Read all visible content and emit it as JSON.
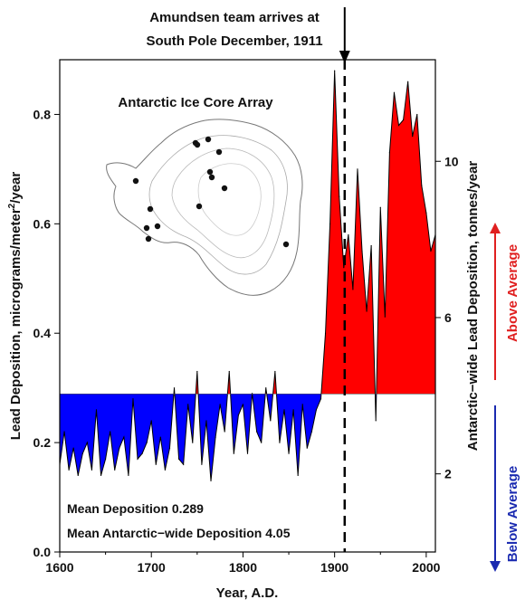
{
  "chart_data": {
    "type": "area",
    "annotation": {
      "line1": "Amundsen team arrives at",
      "line2": "South Pole December, 1911",
      "x": 1911
    },
    "inset_title": "Antarctic Ice Core Array",
    "xlabel": "Year, A.D.",
    "ylabel_left": "Lead Deposition, micrograms/meter",
    "ylabel_left_sup": "2",
    "ylabel_left_tail": "/year",
    "ylabel_right": "Antarctic−wide Lead Deposition, tonnes/year",
    "above_label": "Above Average",
    "below_label": "Below Average",
    "mean_text": "Mean Deposition 0.289",
    "mean_text2": "Mean Antarctic−wide Deposition 4.05",
    "baseline": 0.289,
    "xlim": [
      1600,
      2010
    ],
    "ylim_left": [
      0.0,
      0.9
    ],
    "ylim_right": [
      0,
      12.6
    ],
    "x_ticks": [
      "1600",
      "1700",
      "1800",
      "1900",
      "2000"
    ],
    "y_ticks_left": [
      "0.0",
      "0.2",
      "0.4",
      "0.6",
      "0.8"
    ],
    "y_ticks_right": [
      "2",
      "6",
      "10"
    ],
    "colors": {
      "above": "#ff0000",
      "below": "#0000ff",
      "line": "#000000",
      "arrow_above": "#e02020",
      "arrow_below": "#1a2ab0"
    },
    "series": [
      {
        "x": [
          1600,
          1605,
          1610,
          1615,
          1620,
          1625,
          1630,
          1635,
          1640,
          1645,
          1650,
          1655,
          1660,
          1665,
          1670,
          1675,
          1680,
          1685,
          1690,
          1695,
          1700,
          1705,
          1710,
          1715,
          1720,
          1725,
          1730,
          1735,
          1740,
          1745,
          1750,
          1755,
          1760,
          1765,
          1770,
          1775,
          1780,
          1785,
          1790,
          1795,
          1800,
          1805,
          1810,
          1815,
          1820,
          1825,
          1830,
          1835,
          1840,
          1845,
          1850,
          1855,
          1860,
          1865,
          1870,
          1875,
          1880,
          1885,
          1890,
          1895,
          1900,
          1905,
          1910,
          1915,
          1920,
          1925,
          1930,
          1935,
          1940,
          1945,
          1950,
          1955,
          1960,
          1965,
          1970,
          1975,
          1980,
          1985,
          1990,
          1995,
          2000,
          2005,
          2010
        ],
        "values": [
          0.16,
          0.22,
          0.15,
          0.19,
          0.14,
          0.18,
          0.2,
          0.15,
          0.26,
          0.14,
          0.17,
          0.22,
          0.15,
          0.19,
          0.21,
          0.14,
          0.28,
          0.17,
          0.18,
          0.2,
          0.24,
          0.16,
          0.21,
          0.15,
          0.19,
          0.3,
          0.17,
          0.16,
          0.27,
          0.2,
          0.33,
          0.16,
          0.24,
          0.13,
          0.21,
          0.27,
          0.22,
          0.33,
          0.18,
          0.25,
          0.27,
          0.18,
          0.29,
          0.22,
          0.2,
          0.3,
          0.24,
          0.33,
          0.2,
          0.26,
          0.18,
          0.26,
          0.14,
          0.27,
          0.19,
          0.22,
          0.26,
          0.28,
          0.4,
          0.6,
          0.88,
          0.65,
          0.52,
          0.58,
          0.48,
          0.7,
          0.55,
          0.44,
          0.56,
          0.24,
          0.63,
          0.43,
          0.73,
          0.84,
          0.78,
          0.79,
          0.86,
          0.76,
          0.8,
          0.67,
          0.62,
          0.55,
          0.58
        ]
      }
    ]
  }
}
